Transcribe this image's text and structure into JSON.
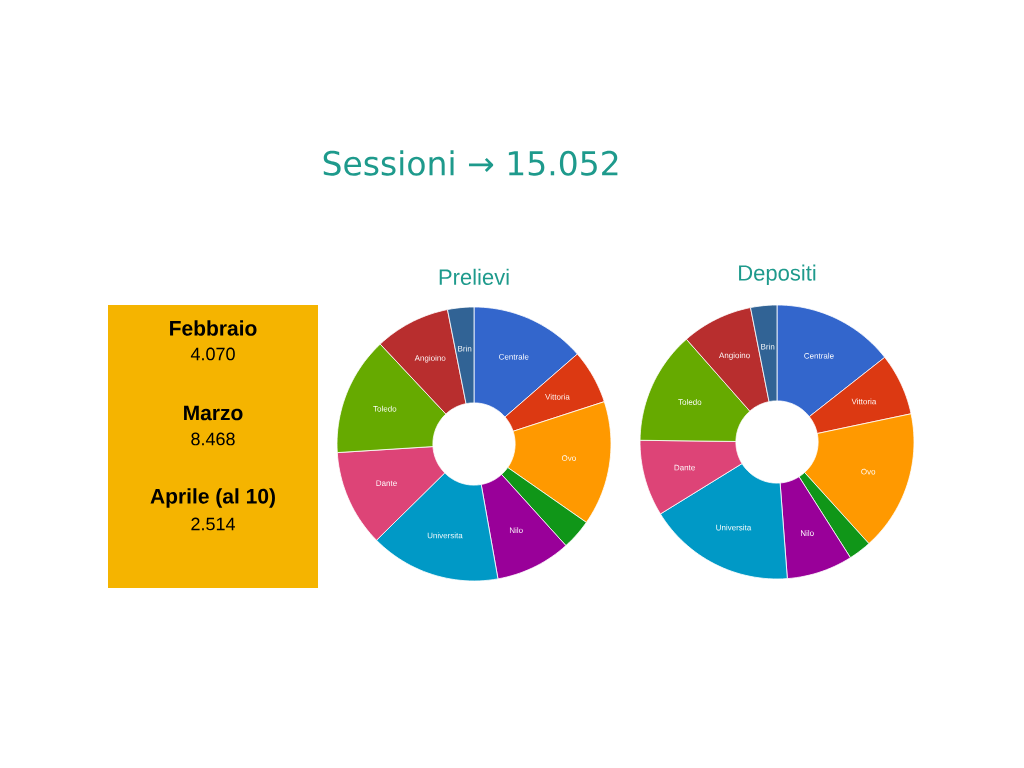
{
  "chart_data": [
    {
      "type": "other",
      "title": "Sessioni → 15.052",
      "color": "#f5b400",
      "annotations": [
        "Febbraio",
        "4.070",
        "Marzo",
        "8.468",
        "Aprile (al 10)",
        "2.514"
      ]
    },
    {
      "type": "donut",
      "title": "Prelievi",
      "categories": [
        "Centrale",
        "Vittoria",
        "Ovo",
        null,
        "Nilo",
        "Universita",
        "Dante",
        "Toledo",
        "Angioino",
        "Brin"
      ],
      "values": [
        13.6,
        6.4,
        14.7,
        3.6,
        8.9,
        15.4,
        11.4,
        14.0,
        8.9,
        3.1
      ],
      "colors": [
        "#3366cc",
        "#dc3912",
        "#ff9900",
        "#109618",
        "#990099",
        "#0099c6",
        "#dd4477",
        "#66aa00",
        "#b82e2e",
        "#316395"
      ]
    },
    {
      "type": "donut",
      "title": "Depositi",
      "categories": [
        "Centrale",
        "Vittoria",
        "Ovo",
        null,
        "Nilo",
        "Universita",
        "Dante",
        "Toledo",
        "Angioino",
        "Brin"
      ],
      "values": [
        14.4,
        7.3,
        16.6,
        2.7,
        7.8,
        17.4,
        9.0,
        13.3,
        8.4,
        3.1
      ],
      "colors": [
        "#3366cc",
        "#dc3912",
        "#ff9900",
        "#109618",
        "#990099",
        "#0099c6",
        "#dd4477",
        "#66aa00",
        "#b82e2e",
        "#316395"
      ]
    }
  ]
}
